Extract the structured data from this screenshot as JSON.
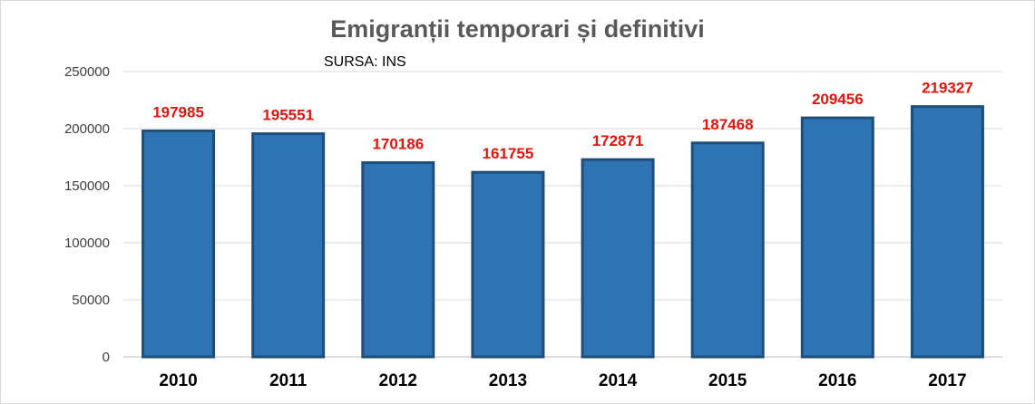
{
  "chart_data": {
    "type": "bar",
    "title": "Emigranții temporari și definitivi",
    "subtitle": "SURSA: INS",
    "categories": [
      "2010",
      "2011",
      "2012",
      "2013",
      "2014",
      "2015",
      "2016",
      "2017"
    ],
    "values": [
      197985,
      195551,
      170186,
      161755,
      172871,
      187468,
      209456,
      219327
    ],
    "data_labels": [
      "197985",
      "195551",
      "170186",
      "161755",
      "172871",
      "187468",
      "209456",
      "219327"
    ],
    "yticks": [
      "0",
      "50000",
      "100000",
      "150000",
      "200000",
      "250000"
    ],
    "ylim": [
      0,
      250000
    ],
    "ytick_step": 50000,
    "xlabel": "",
    "ylabel": "",
    "grid": true,
    "legend": "none",
    "colors": {
      "bar_fill": "#2e74b5",
      "bar_stroke": "#1f4e79",
      "data_label": "#e3140e",
      "gridline": "#d9d9d9",
      "title": "#595959"
    }
  }
}
